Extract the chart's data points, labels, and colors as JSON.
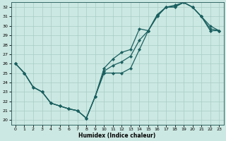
{
  "xlabel": "Humidex (Indice chaleur)",
  "xlim": [
    -0.5,
    23.5
  ],
  "ylim": [
    19.5,
    32.5
  ],
  "xticks": [
    0,
    1,
    2,
    3,
    4,
    5,
    6,
    7,
    8,
    9,
    10,
    11,
    12,
    13,
    14,
    15,
    16,
    17,
    18,
    19,
    20,
    21,
    22,
    23
  ],
  "yticks": [
    20,
    21,
    22,
    23,
    24,
    25,
    26,
    27,
    28,
    29,
    30,
    31,
    32
  ],
  "bg_color": "#cce8e2",
  "grid_color": "#a8ccc6",
  "line_color": "#1a6060",
  "line1_x": [
    0,
    1,
    2,
    3,
    4,
    5,
    6,
    7,
    8,
    9,
    10,
    11,
    12,
    13,
    14,
    15,
    16,
    17,
    18,
    19,
    20,
    21,
    22,
    23
  ],
  "line1_y": [
    26.0,
    25.0,
    23.5,
    23.0,
    21.8,
    21.5,
    21.2,
    21.0,
    20.2,
    22.5,
    25.0,
    25.0,
    25.0,
    25.5,
    27.5,
    29.5,
    31.0,
    32.0,
    32.0,
    32.5,
    32.0,
    31.0,
    29.5,
    29.5
  ],
  "line2_x": [
    0,
    1,
    2,
    3,
    4,
    5,
    6,
    7,
    8,
    9,
    10,
    11,
    12,
    13,
    14,
    15,
    16,
    17,
    18,
    19,
    20,
    21,
    22,
    23
  ],
  "line2_y": [
    26.0,
    25.0,
    23.5,
    23.0,
    21.8,
    21.5,
    21.2,
    21.0,
    20.2,
    22.5,
    25.5,
    26.5,
    27.2,
    27.5,
    29.7,
    29.5,
    31.2,
    32.0,
    32.2,
    32.5,
    32.0,
    31.0,
    30.0,
    29.5
  ],
  "line3_x": [
    0,
    1,
    2,
    3,
    4,
    5,
    6,
    7,
    8,
    9,
    10,
    11,
    12,
    13,
    14,
    15,
    16,
    17,
    18,
    19,
    20,
    21,
    22,
    23
  ],
  "line3_y": [
    26.0,
    25.0,
    23.5,
    23.0,
    21.8,
    21.5,
    21.2,
    21.0,
    20.2,
    22.5,
    25.2,
    25.8,
    26.2,
    26.8,
    28.5,
    29.5,
    31.1,
    32.0,
    32.1,
    32.5,
    32.0,
    31.0,
    29.7,
    29.5
  ]
}
